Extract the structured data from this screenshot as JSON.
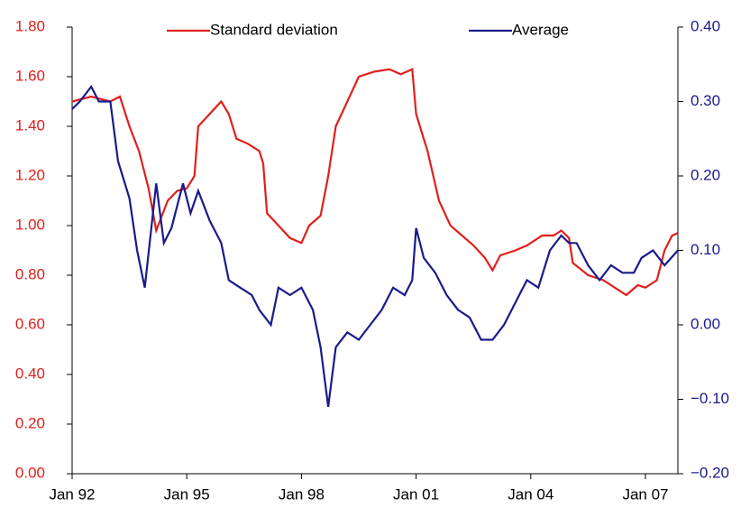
{
  "chart_data": {
    "type": "line",
    "xlim": [
      1992,
      2007.85
    ],
    "xticks": [
      {
        "value": 1992,
        "label": "Jan 92"
      },
      {
        "value": 1995,
        "label": "Jan 95"
      },
      {
        "value": 1998,
        "label": "Jan 98"
      },
      {
        "value": 2001,
        "label": "Jan 01"
      },
      {
        "value": 2004,
        "label": "Jan 04"
      },
      {
        "value": 2007,
        "label": "Jan 07"
      }
    ],
    "ylim": [
      0,
      1.8
    ],
    "yticks": [
      {
        "value": 0,
        "label": "0.00"
      },
      {
        "value": 0.2,
        "label": "0.20"
      },
      {
        "value": 0.4,
        "label": "0.40"
      },
      {
        "value": 0.6,
        "label": "0.60"
      },
      {
        "value": 0.8,
        "label": "0.80"
      },
      {
        "value": 1,
        "label": "1.00"
      },
      {
        "value": 1.2,
        "label": "1.20"
      },
      {
        "value": 1.4,
        "label": "1.40"
      },
      {
        "value": 1.6,
        "label": "1.60"
      },
      {
        "value": 1.8,
        "label": "1.80"
      }
    ],
    "y2lim": [
      -0.2,
      0.4
    ],
    "y2ticks": [
      {
        "value": -0.2,
        "label": "−0.20"
      },
      {
        "value": -0.1,
        "label": "−0.10"
      },
      {
        "value": 0,
        "label": "0.00"
      },
      {
        "value": 0.1,
        "label": "0.10"
      },
      {
        "value": 0.2,
        "label": "0.20"
      },
      {
        "value": 0.3,
        "label": "0.30"
      },
      {
        "value": 0.4,
        "label": "0.40"
      }
    ],
    "ytick_color": "#e0201b",
    "y2tick_color": "#1a1a8c",
    "legend": "top",
    "series": [
      {
        "name": "Standard deviation",
        "color": "#e0201b",
        "x": [
          1992.0,
          1992.5,
          1993.0,
          1993.25,
          1993.5,
          1993.75,
          1994.0,
          1994.2,
          1994.5,
          1994.75,
          1995.0,
          1995.2,
          1995.3,
          1995.6,
          1995.9,
          1996.1,
          1996.3,
          1996.6,
          1996.9,
          1997.0,
          1997.1,
          1997.4,
          1997.7,
          1998.0,
          1998.2,
          1998.5,
          1998.7,
          1998.9,
          1999.2,
          1999.5,
          1999.9,
          2000.3,
          2000.6,
          2000.9,
          2001.0,
          2001.3,
          2001.6,
          2001.9,
          2002.2,
          2002.5,
          2002.8,
          2003.0,
          2003.2,
          2003.6,
          2003.9,
          2004.3,
          2004.6,
          2004.8,
          2005.0,
          2005.1,
          2005.5,
          2005.9,
          2006.2,
          2006.5,
          2006.8,
          2007.0,
          2007.3,
          2007.5,
          2007.7,
          2007.85
        ],
        "values": [
          1.5,
          1.52,
          1.5,
          1.52,
          1.4,
          1.3,
          1.15,
          0.98,
          1.1,
          1.14,
          1.15,
          1.2,
          1.4,
          1.45,
          1.5,
          1.45,
          1.35,
          1.33,
          1.3,
          1.25,
          1.05,
          1.0,
          0.95,
          0.93,
          1.0,
          1.04,
          1.2,
          1.4,
          1.5,
          1.6,
          1.62,
          1.63,
          1.61,
          1.63,
          1.45,
          1.3,
          1.1,
          1.0,
          0.96,
          0.92,
          0.87,
          0.82,
          0.88,
          0.9,
          0.92,
          0.96,
          0.96,
          0.98,
          0.95,
          0.85,
          0.8,
          0.78,
          0.75,
          0.72,
          0.76,
          0.75,
          0.78,
          0.9,
          0.96,
          0.97
        ]
      },
      {
        "name": "Average",
        "color": "#1a1a8c",
        "axis": "y2",
        "x": [
          1992.0,
          1992.2,
          1992.5,
          1992.7,
          1993.0,
          1993.2,
          1993.5,
          1993.7,
          1993.9,
          1994.2,
          1994.4,
          1994.6,
          1994.9,
          1995.1,
          1995.3,
          1995.6,
          1995.9,
          1996.1,
          1996.4,
          1996.7,
          1996.9,
          1997.2,
          1997.4,
          1997.7,
          1998.0,
          1998.3,
          1998.5,
          1998.7,
          1998.9,
          1999.2,
          1999.5,
          1999.8,
          2000.1,
          2000.4,
          2000.7,
          2000.9,
          2001.0,
          2001.2,
          2001.5,
          2001.8,
          2002.1,
          2002.4,
          2002.7,
          2003.0,
          2003.3,
          2003.6,
          2003.9,
          2004.2,
          2004.5,
          2004.8,
          2005.0,
          2005.2,
          2005.5,
          2005.8,
          2006.1,
          2006.4,
          2006.7,
          2006.9,
          2007.2,
          2007.5,
          2007.85
        ],
        "values": [
          0.29,
          0.3,
          0.32,
          0.3,
          0.3,
          0.22,
          0.17,
          0.1,
          0.05,
          0.19,
          0.11,
          0.13,
          0.19,
          0.15,
          0.18,
          0.14,
          0.11,
          0.06,
          0.05,
          0.04,
          0.02,
          0.0,
          0.05,
          0.04,
          0.05,
          0.02,
          -0.03,
          -0.11,
          -0.03,
          -0.01,
          -0.02,
          0.0,
          0.02,
          0.05,
          0.04,
          0.06,
          0.13,
          0.09,
          0.07,
          0.04,
          0.02,
          0.01,
          -0.02,
          -0.02,
          0.0,
          0.03,
          0.06,
          0.05,
          0.1,
          0.12,
          0.11,
          0.11,
          0.08,
          0.06,
          0.08,
          0.07,
          0.07,
          0.09,
          0.1,
          0.08,
          0.1
        ]
      }
    ]
  }
}
